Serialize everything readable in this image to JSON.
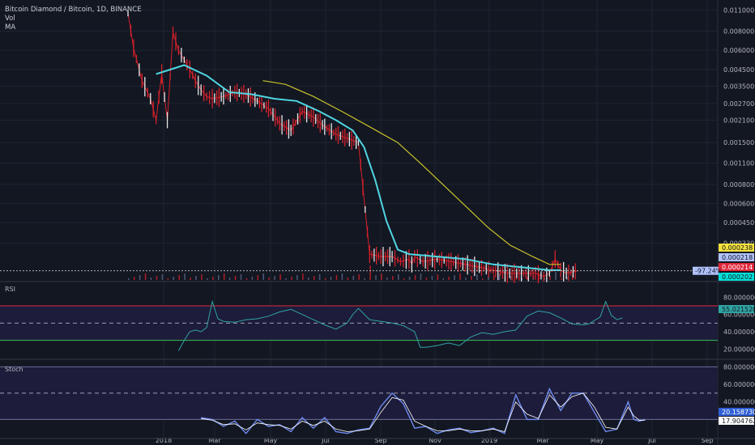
{
  "header": {
    "symbol": "Bitcoin Diamond / Bitcoin, 1D, BINANCE",
    "vol_label": "Vol",
    "ma_label": "MA"
  },
  "colors": {
    "background": "#131722",
    "grid": "#1e2433",
    "up": "#e8e8e8",
    "down": "#d6212b",
    "ma_fast": "#4fd5e0",
    "ma_slow": "#c9c22a",
    "rsi_line": "#2fa4a4",
    "stoch_k": "#6f8bf0",
    "stoch_d": "#ffffff"
  },
  "chart_data": [
    {
      "type": "line",
      "panel": "price",
      "y_scale": "log",
      "y_ticks": [
        "0.011000",
        "0.008000",
        "0.006000",
        "0.004500",
        "0.003500",
        "0.002700",
        "0.002100",
        "0.001500",
        "0.001100",
        "0.000800",
        "0.000600",
        "0.000450",
        "0.000330"
      ],
      "x_ticks": [
        "2018",
        "Mar",
        "May",
        "Jul",
        "Sep",
        "Nov",
        "2019",
        "Mar",
        "May",
        "Jul",
        "Sep"
      ],
      "series": [
        {
          "name": "close",
          "x": [
            0,
            2,
            5,
            8,
            10,
            12,
            14,
            16,
            18,
            20,
            22,
            24,
            26,
            28,
            30,
            34,
            38,
            42,
            46,
            50,
            54,
            58,
            62,
            66,
            70,
            74,
            78,
            82,
            86,
            90,
            94,
            97,
            100,
            101,
            102,
            105,
            110,
            115,
            120,
            125,
            130,
            135,
            140,
            145,
            148,
            150,
            152,
            154,
            156,
            160
          ],
          "y": [
            0.0105,
            0.0062,
            0.0038,
            0.0029,
            0.0021,
            0.0042,
            0.0021,
            0.0078,
            0.006,
            0.0052,
            0.0045,
            0.0038,
            0.0033,
            0.003,
            0.0029,
            0.003,
            0.0032,
            0.0031,
            0.0028,
            0.0025,
            0.002,
            0.0018,
            0.0024,
            0.0022,
            0.0019,
            0.0017,
            0.0016,
            0.0015,
            0.00028,
            0.00027,
            0.00027,
            0.00025,
            0.00026,
            0.00024,
            0.00027,
            0.00025,
            0.00026,
            0.00025,
            0.00024,
            0.00023,
            0.00022,
            0.00021,
            0.00021,
            0.00021,
            0.0002,
            0.00021,
            0.00026,
            0.00022,
            0.00021,
            0.000218
          ]
        },
        {
          "name": "ma_fast",
          "x": [
            10,
            20,
            28,
            36,
            44,
            52,
            60,
            68,
            74,
            80,
            84,
            88,
            92,
            96,
            100,
            110,
            120,
            130,
            140,
            150,
            154
          ],
          "y": [
            0.0042,
            0.0048,
            0.0041,
            0.0032,
            0.0031,
            0.0029,
            0.0028,
            0.0024,
            0.0021,
            0.0018,
            0.0014,
            0.00085,
            0.00046,
            0.0003,
            0.00028,
            0.00027,
            0.00026,
            0.00024,
            0.00023,
            0.00022,
            0.00022
          ]
        },
        {
          "name": "ma_slow",
          "x": [
            48,
            56,
            66,
            76,
            86,
            96,
            104,
            112,
            120,
            128,
            136,
            144,
            150,
            154
          ],
          "y": [
            0.0038,
            0.0036,
            0.003,
            0.0024,
            0.0019,
            0.0015,
            0.0011,
            0.0008,
            0.00058,
            0.00042,
            0.00032,
            0.00027,
            0.00024,
            0.00024
          ]
        }
      ],
      "price_tags": [
        {
          "value": "0.000238",
          "bg": "#f5e23c",
          "fg": "#131722"
        },
        {
          "value": "0.000218",
          "bg": "#b2c3ff",
          "fg": "#131722"
        },
        {
          "value": "0.000214",
          "bg": "#e0283a",
          "fg": "#ffffff"
        },
        {
          "value": "0.000202",
          "bg": "#00e0d8",
          "fg": "#131722"
        }
      ],
      "change_tag": "-97.24%"
    },
    {
      "type": "line",
      "panel": "rsi",
      "label": "RSI",
      "y_ticks": [
        "80.000000",
        "60.000000",
        "40.000000",
        "20.000000"
      ],
      "ylim": [
        10,
        85
      ],
      "bands": [
        70,
        30
      ],
      "midline": 50,
      "current": "55.021520",
      "series": [
        {
          "name": "rsi",
          "x": [
            0,
            2,
            4,
            6,
            8,
            10,
            12,
            14,
            16,
            20,
            24,
            28,
            32,
            36,
            40,
            44,
            48,
            52,
            56,
            60,
            62,
            64,
            68,
            72,
            76,
            80,
            84,
            86,
            88,
            92,
            96,
            100,
            104,
            108,
            112,
            116,
            120,
            124,
            128,
            132,
            136,
            140,
            144,
            146,
            148,
            150,
            152,
            154,
            156,
            158
          ],
          "y": [
            18,
            30,
            40,
            42,
            40,
            45,
            75,
            55,
            52,
            51,
            54,
            55,
            58,
            63,
            66,
            60,
            54,
            48,
            43,
            50,
            60,
            67,
            54,
            52,
            50,
            47,
            40,
            22,
            22,
            24,
            27,
            24,
            34,
            39,
            37,
            40,
            42,
            58,
            64,
            62,
            56,
            49,
            48,
            49,
            53,
            57,
            75,
            59,
            54,
            56
          ]
        }
      ]
    },
    {
      "type": "line",
      "panel": "stoch",
      "label": "Stoch",
      "y_ticks": [
        "80.000000",
        "60.000000",
        "40.000000"
      ],
      "ylim": [
        0,
        85
      ],
      "bands": [
        80,
        20
      ],
      "midline": 50,
      "current": [
        "20.158730",
        "17.904762"
      ],
      "series": [
        {
          "name": "k",
          "x": [
            0,
            4,
            8,
            12,
            16,
            20,
            24,
            28,
            32,
            36,
            40,
            44,
            48,
            52,
            56,
            60,
            64,
            68,
            72,
            76,
            80,
            84,
            88,
            92,
            96,
            100,
            104,
            108,
            112,
            116,
            120,
            124,
            128,
            132,
            136,
            140,
            144,
            148,
            152,
            154,
            156,
            158
          ],
          "y": [
            22,
            20,
            12,
            18,
            4,
            20,
            12,
            14,
            6,
            22,
            10,
            22,
            6,
            4,
            8,
            10,
            35,
            50,
            38,
            10,
            12,
            4,
            8,
            10,
            5,
            7,
            10,
            4,
            48,
            20,
            20,
            55,
            30,
            50,
            50,
            28,
            6,
            9,
            40,
            20,
            18,
            20
          ]
        },
        {
          "name": "d",
          "x": [
            0,
            4,
            8,
            12,
            16,
            20,
            24,
            28,
            32,
            36,
            40,
            44,
            48,
            52,
            56,
            60,
            64,
            68,
            72,
            76,
            80,
            84,
            88,
            92,
            96,
            100,
            104,
            108,
            112,
            116,
            120,
            124,
            128,
            132,
            136,
            140,
            144,
            148,
            152,
            154,
            156,
            158
          ],
          "y": [
            21,
            19,
            14,
            15,
            8,
            16,
            14,
            13,
            9,
            18,
            13,
            18,
            9,
            6,
            7,
            9,
            28,
            45,
            42,
            18,
            12,
            7,
            7,
            9,
            7,
            7,
            9,
            6,
            40,
            26,
            21,
            48,
            34,
            46,
            50,
            34,
            11,
            9,
            34,
            24,
            19,
            19
          ]
        }
      ]
    }
  ]
}
